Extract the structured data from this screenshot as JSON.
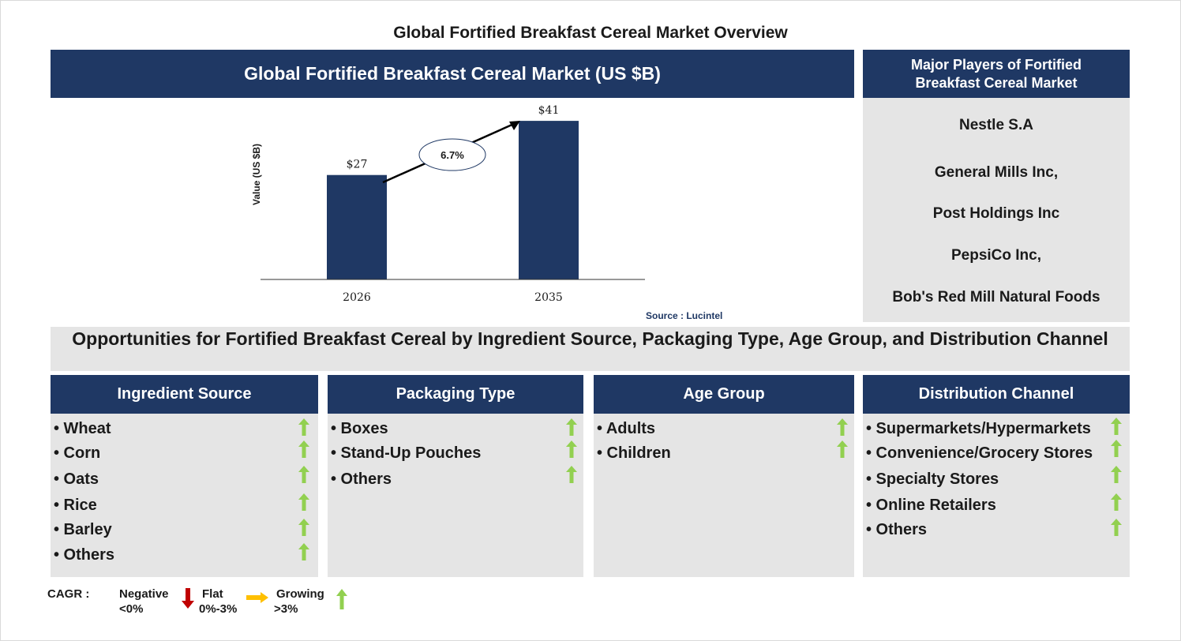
{
  "page_title": "Global Fortified Breakfast Cereal Market Overview",
  "chart_header": "Global Fortified Breakfast Cereal Market (US $B)",
  "chart_data": {
    "type": "bar",
    "categories": [
      "2026",
      "2035"
    ],
    "values": [
      27,
      41
    ],
    "value_labels": [
      "$27",
      "$41"
    ],
    "ylabel": "Value (US $B)",
    "ylim": [
      0,
      50
    ],
    "grid": false,
    "annotation": "6.7%",
    "bar_color": "#1f3864"
  },
  "source": "Source : Lucintel",
  "players": {
    "header": "Major Players of Fortified Breakfast Cereal Market",
    "items": [
      "Nestle S.A",
      "General Mills Inc,",
      "Post Holdings Inc",
      "PepsiCo Inc,",
      "Bob's Red Mill Natural Foods"
    ]
  },
  "opportunities_title": "Opportunities for Fortified Breakfast Cereal by Ingredient Source, Packaging Type, Age Group, and Distribution Channel",
  "segments": [
    {
      "title": "Ingredient Source",
      "items": [
        "• Wheat",
        "• Corn",
        "• Oats",
        "• Rice",
        "• Barley",
        "• Others"
      ]
    },
    {
      "title": "Packaging Type",
      "items": [
        "• Boxes",
        "• Stand-Up Pouches",
        "• Others"
      ]
    },
    {
      "title": "Age Group",
      "items": [
        "• Adults",
        "• Children"
      ]
    },
    {
      "title": "Distribution Channel",
      "items": [
        "• Supermarkets/Hypermarkets",
        "• Convenience/Grocery Stores",
        "• Specialty Stores",
        "• Online Retailers",
        "• Others"
      ]
    }
  ],
  "legend": {
    "label": "CAGR :",
    "negative": "Negative",
    "negative_range": "<0%",
    "flat": "Flat",
    "flat_range": "0%-3%",
    "growing": "Growing",
    "growing_range": ">3%"
  },
  "colors": {
    "navy": "#1f3864",
    "panel_grey": "#e5e5e5",
    "growing_green": "#92d050",
    "negative_red": "#c00000",
    "flat_orange": "#ffc000"
  }
}
